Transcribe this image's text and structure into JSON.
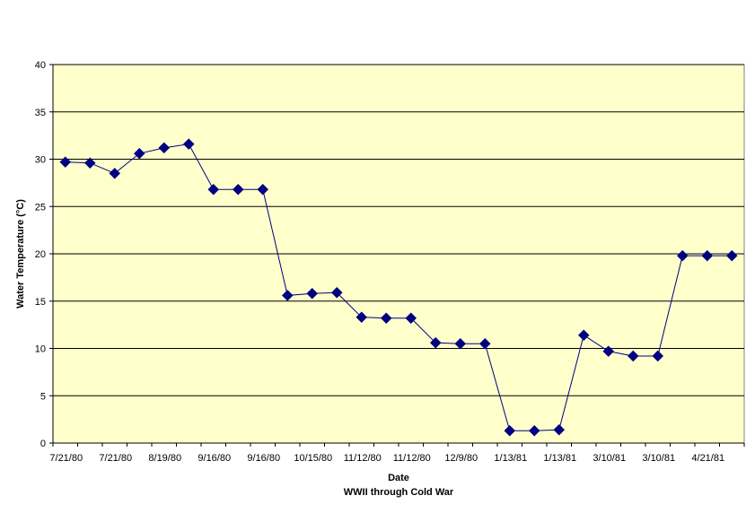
{
  "chart_data": {
    "type": "line",
    "title": "",
    "xlabel": "Date",
    "subtitle": "WWII through Cold War",
    "ylabel": "Water Temperature (°C)",
    "ylim": [
      0,
      40
    ],
    "yticks": [
      0,
      5,
      10,
      15,
      20,
      25,
      30,
      35,
      40
    ],
    "x_tick_labels": [
      "7/21/80",
      "7/21/80",
      "8/19/80",
      "9/16/80",
      "9/16/80",
      "10/15/80",
      "11/12/80",
      "11/12/80",
      "12/9/80",
      "1/13/81",
      "1/13/81",
      "3/10/81",
      "3/10/81",
      "4/21/81"
    ],
    "grid": true,
    "legend": "none",
    "plot_background": "#FFFFCC",
    "series": [
      {
        "color": "#000080",
        "values": [
          29.7,
          29.6,
          28.5,
          30.6,
          31.2,
          31.6,
          26.8,
          26.8,
          26.8,
          15.6,
          15.8,
          15.9,
          13.3,
          13.2,
          13.2,
          10.6,
          10.5,
          10.5,
          1.3,
          1.3,
          1.4,
          11.4,
          9.7,
          9.2,
          9.2,
          19.8,
          19.8,
          19.8
        ]
      }
    ]
  }
}
